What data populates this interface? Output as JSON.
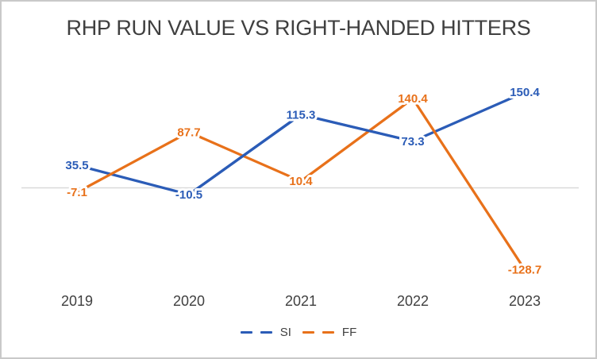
{
  "chart_data": {
    "type": "line",
    "title": "RHP RUN VALUE VS RIGHT-HANDED HITTERS",
    "categories": [
      "2019",
      "2020",
      "2021",
      "2022",
      "2023"
    ],
    "series": [
      {
        "name": "SI",
        "color": "#2B5CB7",
        "values": [
          35.5,
          -10.5,
          115.3,
          73.3,
          150.4
        ]
      },
      {
        "name": "FF",
        "color": "#E8711A",
        "values": [
          -7.1,
          87.7,
          10.4,
          140.4,
          -128.7
        ]
      }
    ],
    "legend_position": "bottom",
    "legend_labels": [
      "SI",
      "FF"
    ],
    "grid": "zero-line-only",
    "gridline_color": "#D9D9D9",
    "axis_text_color": "#404040",
    "title_color": "#3F3F3F",
    "background": "#FFFFFF",
    "border_color": "#C9C9C9",
    "data_labels": true,
    "ylim_approx": [
      -160,
      190
    ]
  }
}
